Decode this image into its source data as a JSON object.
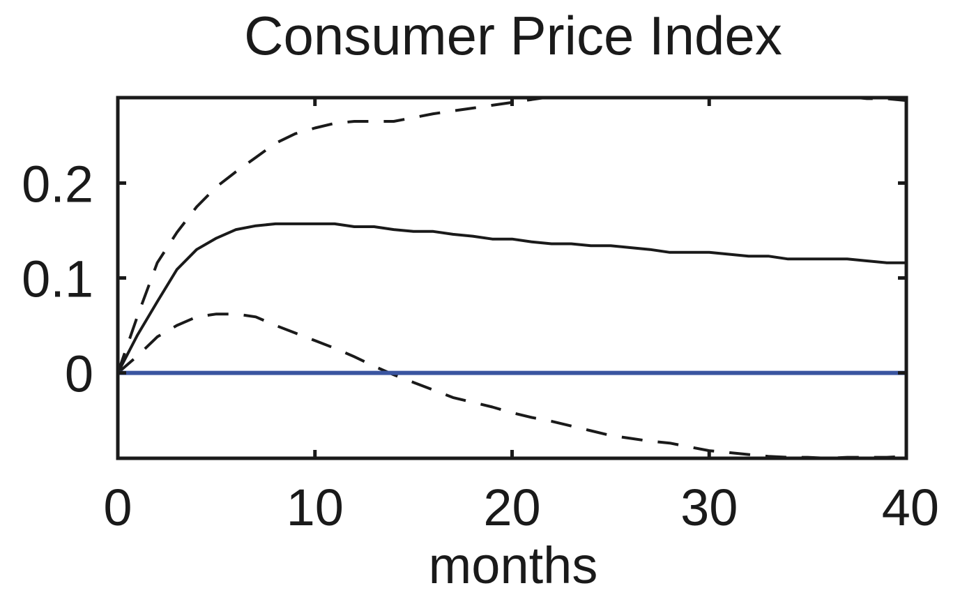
{
  "chart_data": {
    "type": "line",
    "title": "Consumer Price Index",
    "xlabel": "months",
    "ylabel": "",
    "xlim": [
      0,
      40
    ],
    "ylim": [
      -0.09,
      0.29
    ],
    "xticks": [
      0,
      10,
      20,
      30,
      40
    ],
    "xtick_labels": [
      "0",
      "10",
      "20",
      "30",
      "40"
    ],
    "yticks": [
      0,
      0.1,
      0.2
    ],
    "ytick_labels": [
      "0",
      "0.1",
      "0.2"
    ],
    "grid": false,
    "legend": null,
    "series": [
      {
        "style": "solid",
        "color": "#1a1a1a",
        "x": [
          0,
          1,
          2,
          3,
          4,
          5,
          6,
          7,
          8,
          9,
          10,
          11,
          12,
          13,
          14,
          15,
          16,
          17,
          18,
          19,
          20,
          21,
          22,
          23,
          24,
          25,
          26,
          27,
          28,
          29,
          30,
          31,
          32,
          33,
          34,
          35,
          36,
          37,
          38,
          39,
          40
        ],
        "y": [
          0,
          0.04,
          0.075,
          0.109,
          0.13,
          0.142,
          0.151,
          0.155,
          0.157,
          0.157,
          0.157,
          0.157,
          0.154,
          0.154,
          0.151,
          0.149,
          0.149,
          0.146,
          0.144,
          0.141,
          0.141,
          0.138,
          0.136,
          0.136,
          0.134,
          0.134,
          0.132,
          0.13,
          0.127,
          0.127,
          0.127,
          0.125,
          0.123,
          0.123,
          0.12,
          0.12,
          0.12,
          0.12,
          0.118,
          0.116,
          0.116
        ]
      },
      {
        "style": "dashed",
        "color": "#1a1a1a",
        "x": [
          0,
          1,
          2,
          3,
          4,
          5,
          6,
          7,
          8,
          9,
          10,
          11,
          12,
          13,
          14,
          15,
          16,
          17,
          18,
          19,
          20,
          21,
          22,
          23,
          24,
          25,
          26,
          27,
          28,
          29,
          30,
          31,
          32,
          33,
          34,
          35,
          36,
          37,
          38,
          39,
          40
        ],
        "y": [
          0,
          0.06,
          0.116,
          0.148,
          0.175,
          0.196,
          0.212,
          0.227,
          0.242,
          0.252,
          0.258,
          0.263,
          0.265,
          0.265,
          0.265,
          0.269,
          0.273,
          0.276,
          0.279,
          0.282,
          0.285,
          0.288,
          0.291,
          0.294,
          0.296,
          0.299,
          0.3,
          0.3,
          0.3,
          0.299,
          0.301,
          0.301,
          0.3,
          0.299,
          0.299,
          0.296,
          0.293,
          0.291,
          0.289,
          0.289,
          0.287
        ]
      },
      {
        "style": "dashed",
        "color": "#1a1a1a",
        "x": [
          0,
          1,
          2,
          3,
          4,
          5,
          6,
          7,
          8,
          9,
          10,
          11,
          12,
          13,
          14,
          15,
          16,
          17,
          18,
          19,
          20,
          21,
          22,
          23,
          24,
          25,
          26,
          27,
          28,
          29,
          30,
          31,
          32,
          33,
          34,
          35,
          36,
          37,
          38,
          39,
          40
        ],
        "y": [
          0,
          0.018,
          0.038,
          0.05,
          0.059,
          0.062,
          0.062,
          0.059,
          0.05,
          0.042,
          0.034,
          0.026,
          0.017,
          0.007,
          -0.002,
          -0.01,
          -0.018,
          -0.026,
          -0.031,
          -0.036,
          -0.042,
          -0.047,
          -0.051,
          -0.056,
          -0.061,
          -0.066,
          -0.069,
          -0.072,
          -0.074,
          -0.078,
          -0.082,
          -0.084,
          -0.086,
          -0.088,
          -0.089,
          -0.089,
          -0.09,
          -0.089,
          -0.089,
          -0.089,
          -0.088
        ]
      },
      {
        "style": "solid",
        "color": "#3a55a0",
        "x": [
          0,
          40
        ],
        "y": [
          0,
          0
        ]
      }
    ]
  }
}
